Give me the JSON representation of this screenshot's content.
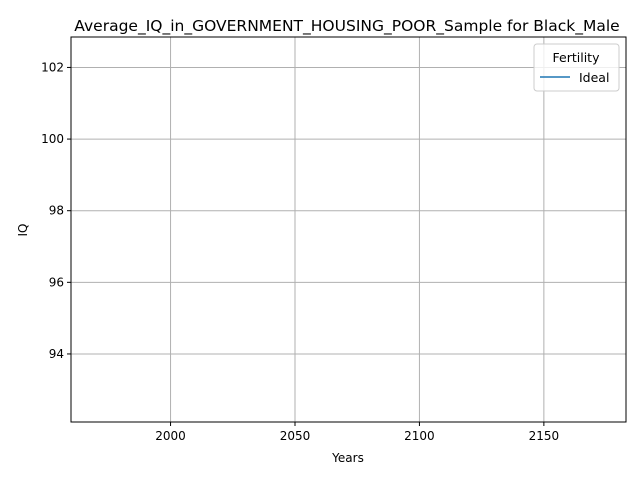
{
  "chart_data": {
    "type": "line",
    "title": "Average_IQ_in_GOVERNMENT_HOUSING_POOR_Sample for Black_Male",
    "xlabel": "Years",
    "ylabel": "IQ",
    "xlim": [
      1960,
      2183
    ],
    "ylim": [
      92.1,
      102.85
    ],
    "x_ticks": [
      2000,
      2050,
      2100,
      2150
    ],
    "x_tick_labels": [
      "2000",
      "2050",
      "2100",
      "2150"
    ],
    "y_ticks": [
      94,
      96,
      98,
      100,
      102
    ],
    "y_tick_labels": [
      "94",
      "96",
      "98",
      "100",
      "102"
    ],
    "grid": true,
    "legend": {
      "title": "Fertility",
      "placement": "top-right",
      "entries": [
        {
          "label": "Ideal",
          "color": "#1f77b4"
        }
      ]
    },
    "series": [
      {
        "name": "Ideal",
        "color": "#1f77b4",
        "x": [],
        "y": []
      }
    ]
  }
}
